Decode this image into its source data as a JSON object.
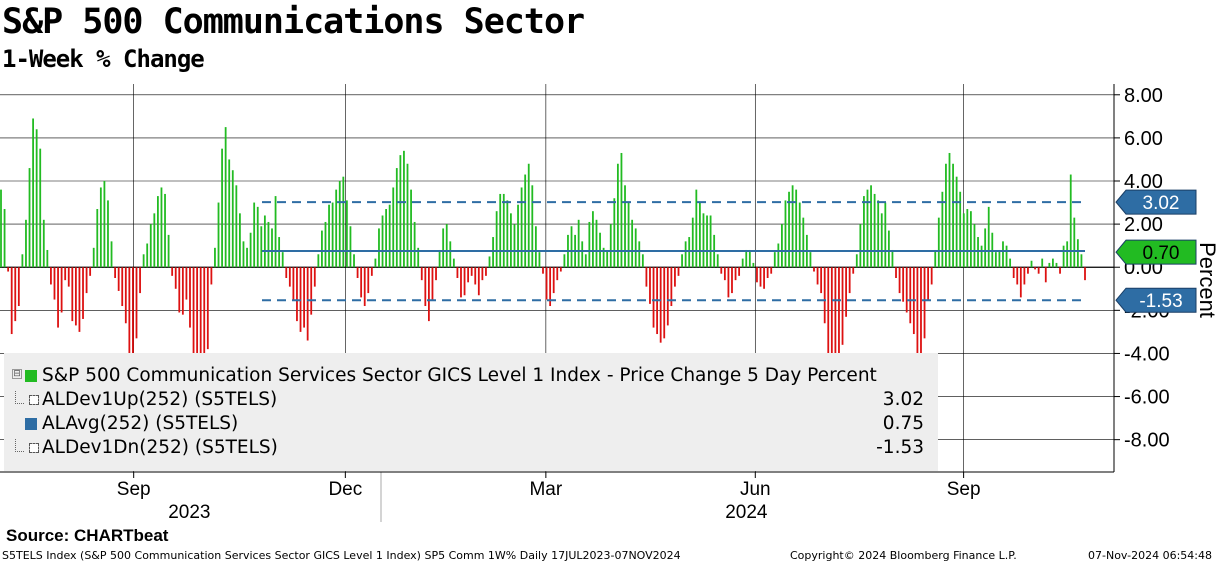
{
  "header": {
    "title": "S&P 500 Communications Sector",
    "subtitle": "1-Week % Change"
  },
  "legend": {
    "items": [
      {
        "label": "S&P 500 Communication Services Sector GICS Level 1 Index - Price Change 5 Day Percent",
        "value": "",
        "color": "#22bb22"
      },
      {
        "label": "ALDev1Up(252) (S5TELS)",
        "value": "3.02",
        "color": "#2e6da4"
      },
      {
        "label": "ALAvg(252) (S5TELS)",
        "value": "0.75",
        "color": "#2e6da4"
      },
      {
        "label": "ALDev1Dn(252) (S5TELS)",
        "value": "-1.53",
        "color": "#2e6da4"
      }
    ]
  },
  "source": "Source: CHARTbeat",
  "footer": {
    "left": "S5TELS Index (S&P 500 Communication Services Sector GICS Level 1 Index) SP5 Comm 1W%  Daily 17JUL2023-07NOV2024",
    "middle": "Copyright© 2024 Bloomberg Finance L.P.",
    "right": "07-Nov-2024 06:54:48"
  },
  "chart_data": {
    "type": "bar",
    "title": "S&P 500 Communications Sector",
    "subtitle": "1-Week % Change",
    "ylabel": "Percent",
    "ylim": [
      -9.5,
      8.5
    ],
    "y_ticks": [
      "8.00",
      "6.00",
      "4.00",
      "2.00",
      "0.00",
      "-2.00",
      "-4.00",
      "-6.00",
      "-8.00"
    ],
    "x_ticks": [
      {
        "label": "Sep",
        "t": 0.12
      },
      {
        "label": "Dec",
        "t": 0.31
      },
      {
        "label": "Mar",
        "t": 0.49
      },
      {
        "label": "Jun",
        "t": 0.678
      },
      {
        "label": "Sep",
        "t": 0.865
      }
    ],
    "year_labels": [
      {
        "label": "2023",
        "t": 0.17
      },
      {
        "label": "2024",
        "t": 0.67
      }
    ],
    "up_color": "#22bb22",
    "down_color": "#dd1111",
    "reference_lines": {
      "dev_up": 3.02,
      "avg": 0.75,
      "dev_down": -1.53,
      "color": "#2e6da4"
    },
    "badges": [
      {
        "label": "3.02",
        "value": 3.02,
        "color": "#2e6da4"
      },
      {
        "label": "0.70",
        "value": 0.7,
        "color": "#22bb22"
      },
      {
        "label": "-1.53",
        "value": -1.53,
        "color": "#2e6da4"
      }
    ],
    "series": [
      {
        "name": "S&P 500 Communication Services Sector GICS Level 1 Index - Price Change 5 Day Percent",
        "values": [
          3.6,
          2.7,
          -0.2,
          -3.1,
          -2.5,
          -1.8,
          0.6,
          2.2,
          4.6,
          6.9,
          6.4,
          5.5,
          2.2,
          0.8,
          -0.8,
          -1.5,
          -2.8,
          -2.1,
          -0.6,
          -0.9,
          -2.5,
          -2.7,
          -3.0,
          -2.4,
          -1.2,
          -0.4,
          0.9,
          2.7,
          3.7,
          4.0,
          3.1,
          1.2,
          -0.5,
          -1.1,
          -1.8,
          -2.6,
          -4.0,
          -4.2,
          -3.3,
          -1.2,
          0.6,
          1.1,
          2.0,
          2.5,
          3.3,
          3.7,
          3.4,
          1.5,
          -0.4,
          -1.0,
          -2.1,
          -2.2,
          -1.5,
          -2.8,
          -5.0,
          -7.2,
          -6.6,
          -6.0,
          -3.8,
          -0.8,
          0.9,
          3.0,
          5.5,
          6.5,
          5.0,
          4.5,
          3.8,
          2.5,
          1.2,
          0.9,
          1.6,
          3.0,
          2.8,
          1.9,
          2.4,
          2.1,
          1.8,
          3.3,
          1.4,
          0.7,
          -0.5,
          -0.9,
          -1.5,
          -2.5,
          -3.0,
          -2.8,
          -3.4,
          -2.2,
          -0.9,
          0.6,
          1.7,
          2.1,
          2.9,
          3.0,
          3.6,
          4.0,
          4.2,
          3.1,
          1.9,
          0.6,
          -0.5,
          -1.4,
          -1.8,
          -1.2,
          -0.4,
          0.4,
          1.8,
          2.4,
          2.7,
          2.9,
          3.7,
          4.6,
          5.2,
          5.4,
          4.8,
          3.6,
          2.1,
          0.9,
          -0.6,
          -1.8,
          -2.5,
          -1.5,
          -0.6,
          0.8,
          1.8,
          2.0,
          1.2,
          0.4,
          -0.5,
          -1.4,
          -1.3,
          -0.7,
          -0.4,
          -0.8,
          -1.3,
          -0.6,
          -0.4,
          0.5,
          1.4,
          2.6,
          3.4,
          3.4,
          3.1,
          2.5,
          2.0,
          2.9,
          3.7,
          4.3,
          4.8,
          3.8,
          1.9,
          0.7,
          -0.3,
          -1.5,
          -1.8,
          -1.2,
          -0.6,
          -0.2,
          0.6,
          1.5,
          1.9,
          1.5,
          2.2,
          1.2,
          0.6,
          2.1,
          2.6,
          2.2,
          1.6,
          0.9,
          0.8,
          2.0,
          3.2,
          4.8,
          5.3,
          3.8,
          3.0,
          2.2,
          1.8,
          1.2,
          0.6,
          -0.9,
          -1.7,
          -2.8,
          -3.1,
          -3.5,
          -3.3,
          -2.7,
          -1.8,
          -0.9,
          -0.4,
          0.6,
          1.2,
          1.4,
          2.3,
          3.6,
          3.0,
          2.5,
          2.4,
          2.4,
          1.5,
          0.6,
          -0.3,
          -0.6,
          -1.4,
          -1.2,
          -0.6,
          -0.4,
          0.4,
          0.8,
          0.8,
          0.2,
          -0.7,
          -0.9,
          -1.0,
          -0.5,
          -0.3,
          0.7,
          1.1,
          2.0,
          3.1,
          3.5,
          3.8,
          3.6,
          3.0,
          2.3,
          1.5,
          0.7,
          -0.2,
          -0.8,
          -1.2,
          -2.6,
          -4.2,
          -4.6,
          -4.8,
          -4.8,
          -3.6,
          -2.3,
          -1.2,
          -0.3,
          0.6,
          2.0,
          3.3,
          3.6,
          3.8,
          3.4,
          3.1,
          2.5,
          3.0,
          1.7,
          0.8,
          -0.5,
          -1.2,
          -1.6,
          -2.1,
          -2.6,
          -3.1,
          -4.0,
          -4.9,
          -3.3,
          -1.5,
          -0.8,
          0.8,
          2.3,
          3.5,
          4.8,
          5.3,
          4.8,
          4.2,
          3.5,
          2.5,
          2.7,
          2.6,
          2.0,
          1.4,
          1.0,
          1.8,
          2.8,
          1.6,
          0.7,
          0.8,
          1.2,
          1.0,
          0.4,
          -0.5,
          -0.8,
          -1.4,
          -0.8,
          -0.3,
          0.3,
          -0.1,
          -0.3,
          0.4,
          -0.7,
          0.2,
          0.4,
          0.2,
          -0.3,
          1.0,
          1.2,
          4.3,
          2.3,
          1.3,
          0.6,
          -0.6
        ]
      }
    ]
  }
}
